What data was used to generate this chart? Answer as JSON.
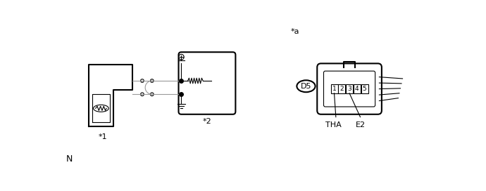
{
  "bg_color": "#ffffff",
  "line_color": "#000000",
  "gray_color": "#999999",
  "label_star1": "*1",
  "label_star2": "*2",
  "label_star_a": "*a",
  "label_N": "N",
  "label_D5": "D5",
  "label_THA": "THA",
  "label_E2": "E2",
  "pin_labels": [
    "1",
    "2",
    "3",
    "4",
    "5"
  ],
  "figsize": [
    6.9,
    2.72
  ],
  "dpi": 100
}
